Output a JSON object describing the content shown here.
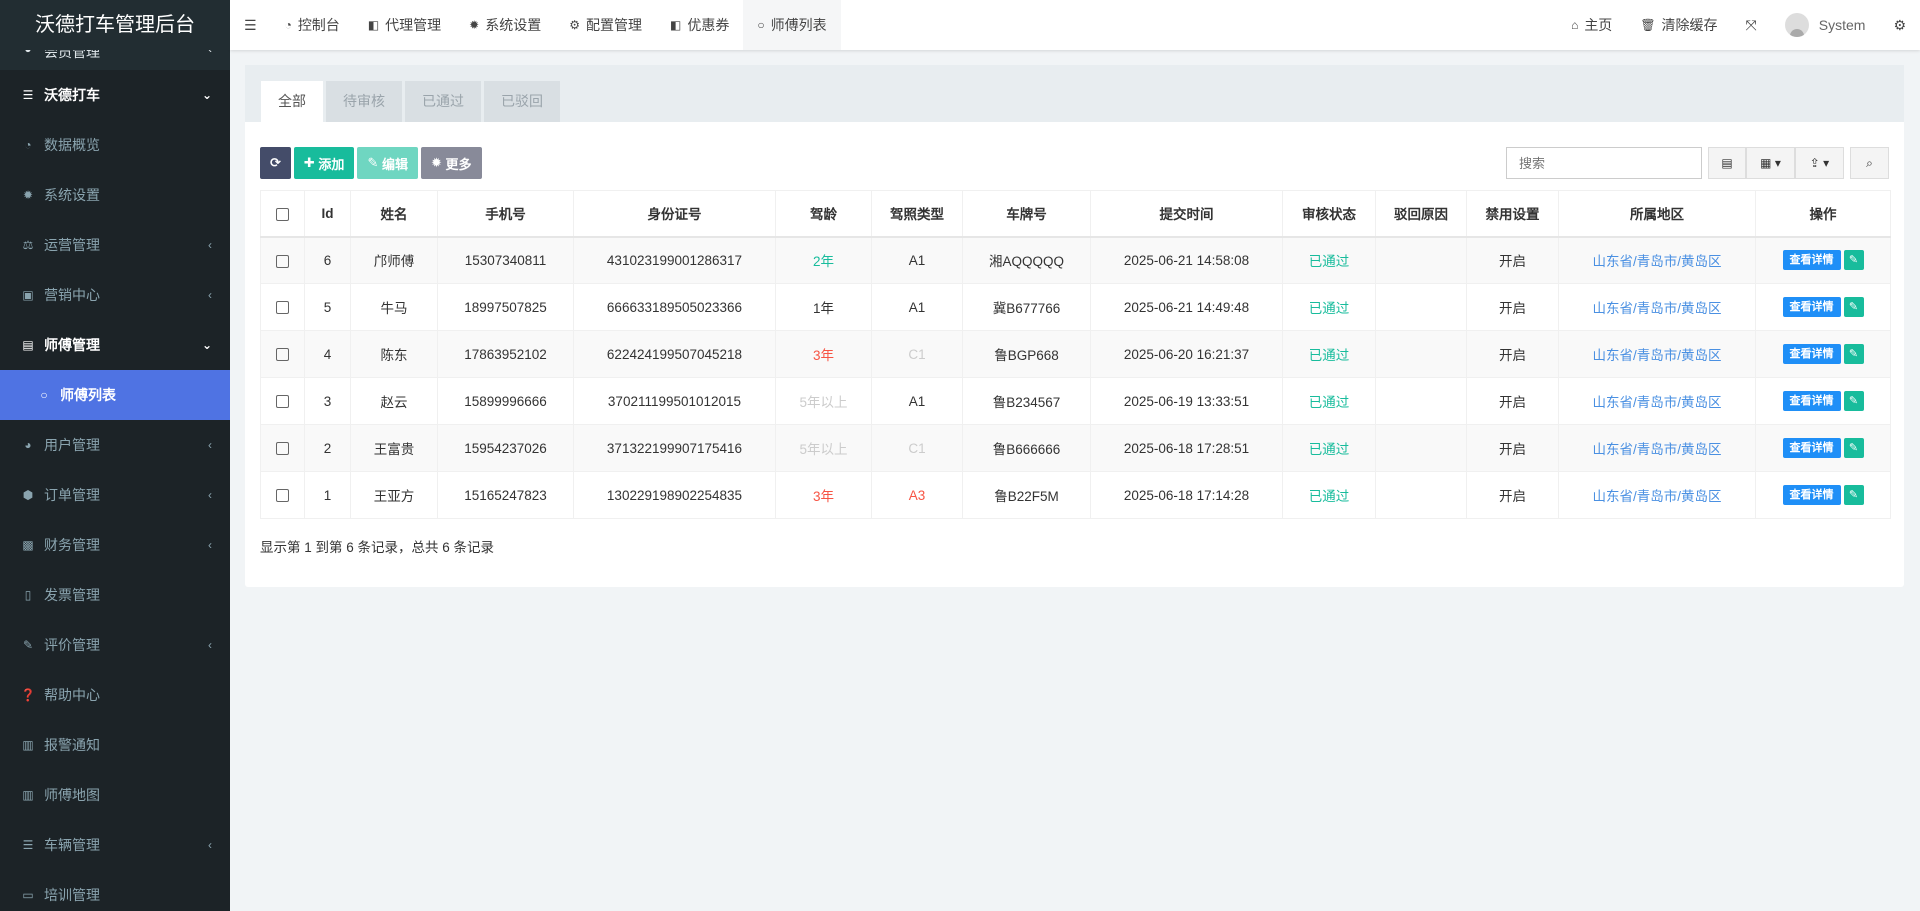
{
  "app_title": "沃德打车管理后台",
  "sidebar": {
    "items": [
      {
        "label": "会员管理",
        "icon": "user-circle-icon",
        "glyph": "◕",
        "chev": "‹",
        "type": "top"
      },
      {
        "label": "沃德打车",
        "icon": "list-icon",
        "glyph": "☰",
        "chev": "⌄",
        "type": "group"
      },
      {
        "label": "数据概览",
        "icon": "dashboard-icon",
        "glyph": "◔",
        "chev": "",
        "type": ""
      },
      {
        "label": "系统设置",
        "icon": "gear-icon",
        "glyph": "✹",
        "chev": "",
        "type": ""
      },
      {
        "label": "运营管理",
        "icon": "balance-icon",
        "glyph": "⚖",
        "chev": "‹",
        "type": ""
      },
      {
        "label": "营销中心",
        "icon": "calendar-icon",
        "glyph": "▣",
        "chev": "‹",
        "type": ""
      },
      {
        "label": "师傅管理",
        "icon": "id-card-icon",
        "glyph": "▤",
        "chev": "⌄",
        "type": "group"
      },
      {
        "label": "师傅列表",
        "icon": "circle-icon",
        "glyph": "○",
        "chev": "",
        "type": "active"
      },
      {
        "label": "用户管理",
        "icon": "user-circle-icon",
        "glyph": "◕",
        "chev": "‹",
        "type": ""
      },
      {
        "label": "订单管理",
        "icon": "cube-icon",
        "glyph": "⬢",
        "chev": "‹",
        "type": ""
      },
      {
        "label": "财务管理",
        "icon": "money-icon",
        "glyph": "▩",
        "chev": "‹",
        "type": ""
      },
      {
        "label": "发票管理",
        "icon": "file-icon",
        "glyph": "▯",
        "chev": "",
        "type": ""
      },
      {
        "label": "评价管理",
        "icon": "edit-icon",
        "glyph": "✎",
        "chev": "‹",
        "type": ""
      },
      {
        "label": "帮助中心",
        "icon": "question-icon",
        "glyph": "❓",
        "chev": "",
        "type": ""
      },
      {
        "label": "报警通知",
        "icon": "map-icon",
        "glyph": "▥",
        "chev": "",
        "type": ""
      },
      {
        "label": "师傅地图",
        "icon": "map-icon",
        "glyph": "▥",
        "chev": "",
        "type": ""
      },
      {
        "label": "车辆管理",
        "icon": "list-icon",
        "glyph": "☰",
        "chev": "‹",
        "type": ""
      },
      {
        "label": "培训管理",
        "icon": "file-icon",
        "glyph": "▭",
        "chev": "",
        "type": ""
      }
    ]
  },
  "header": {
    "menu_icon": "☰",
    "tabs": [
      {
        "label": "控制台",
        "icon": "dashboard-icon",
        "glyph": "◔"
      },
      {
        "label": "代理管理",
        "icon": "square-half-icon",
        "glyph": "◧"
      },
      {
        "label": "系统设置",
        "icon": "gear-icon",
        "glyph": "✹"
      },
      {
        "label": "配置管理",
        "icon": "gears-icon",
        "glyph": "⚙"
      },
      {
        "label": "优惠券",
        "icon": "square-half-icon",
        "glyph": "◧"
      },
      {
        "label": "师傅列表",
        "icon": "circle-icon",
        "glyph": "○",
        "active": true
      }
    ],
    "home": "主页",
    "clear_cache": "清除缓存",
    "user": "System"
  },
  "filter_tabs": [
    "全部",
    "待审核",
    "已通过",
    "已驳回"
  ],
  "toolbar": {
    "add": "添加",
    "edit": "编辑",
    "more": "更多",
    "search_placeholder": "搜索"
  },
  "colors": {
    "refresh": "#444c69",
    "add": "#18bc9c",
    "edit": "#6fd6c1",
    "more": "#888a99",
    "active_sidebar": "#4f73e3"
  },
  "table": {
    "columns": [
      "Id",
      "姓名",
      "手机号",
      "身份证号",
      "驾龄",
      "驾照类型",
      "车牌号",
      "提交时间",
      "审核状态",
      "驳回原因",
      "禁用设置",
      "所属地区",
      "操作"
    ],
    "rows": [
      {
        "id": "6",
        "name": "邝师傅",
        "phone": "15307340811",
        "idcard": "431023199001286317",
        "age": "2年",
        "age_c": "green",
        "lic": "A1",
        "lic_c": "",
        "plate": "湘AQQQQQ",
        "time": "2025-06-21 14:58:08",
        "status": "已通过",
        "reason": "",
        "disable": "开启",
        "region": "山东省/青岛市/黄岛区"
      },
      {
        "id": "5",
        "name": "牛马",
        "phone": "18997507825",
        "idcard": "666633189505023366",
        "age": "1年",
        "age_c": "",
        "lic": "A1",
        "lic_c": "",
        "plate": "冀B677766",
        "time": "2025-06-21 14:49:48",
        "status": "已通过",
        "reason": "",
        "disable": "开启",
        "region": "山东省/青岛市/黄岛区"
      },
      {
        "id": "4",
        "name": "陈东",
        "phone": "17863952102",
        "idcard": "622424199507045218",
        "age": "3年",
        "age_c": "red",
        "lic": "C1",
        "lic_c": "faint",
        "plate": "鲁BGP668",
        "time": "2025-06-20 16:21:37",
        "status": "已通过",
        "reason": "",
        "disable": "开启",
        "region": "山东省/青岛市/黄岛区"
      },
      {
        "id": "3",
        "name": "赵云",
        "phone": "15899996666",
        "idcard": "370211199501012015",
        "age": "5年以上",
        "age_c": "faint",
        "lic": "A1",
        "lic_c": "",
        "plate": "鲁B234567",
        "time": "2025-06-19 13:33:51",
        "status": "已通过",
        "reason": "",
        "disable": "开启",
        "region": "山东省/青岛市/黄岛区"
      },
      {
        "id": "2",
        "name": "王富贵",
        "phone": "15954237026",
        "idcard": "371322199907175416",
        "age": "5年以上",
        "age_c": "faint",
        "lic": "C1",
        "lic_c": "faint",
        "plate": "鲁B666666",
        "time": "2025-06-18 17:28:51",
        "status": "已通过",
        "reason": "",
        "disable": "开启",
        "region": "山东省/青岛市/黄岛区"
      },
      {
        "id": "1",
        "name": "王亚方",
        "phone": "15165247823",
        "idcard": "130229198902254835",
        "age": "3年",
        "age_c": "red",
        "lic": "A3",
        "lic_c": "red",
        "plate": "鲁B22F5M",
        "time": "2025-06-18 17:14:28",
        "status": "已通过",
        "reason": "",
        "disable": "开启",
        "region": "山东省/青岛市/黄岛区"
      }
    ],
    "view_label": "查看详情"
  },
  "footer": "显示第 1 到第 6 条记录，总共 6 条记录"
}
